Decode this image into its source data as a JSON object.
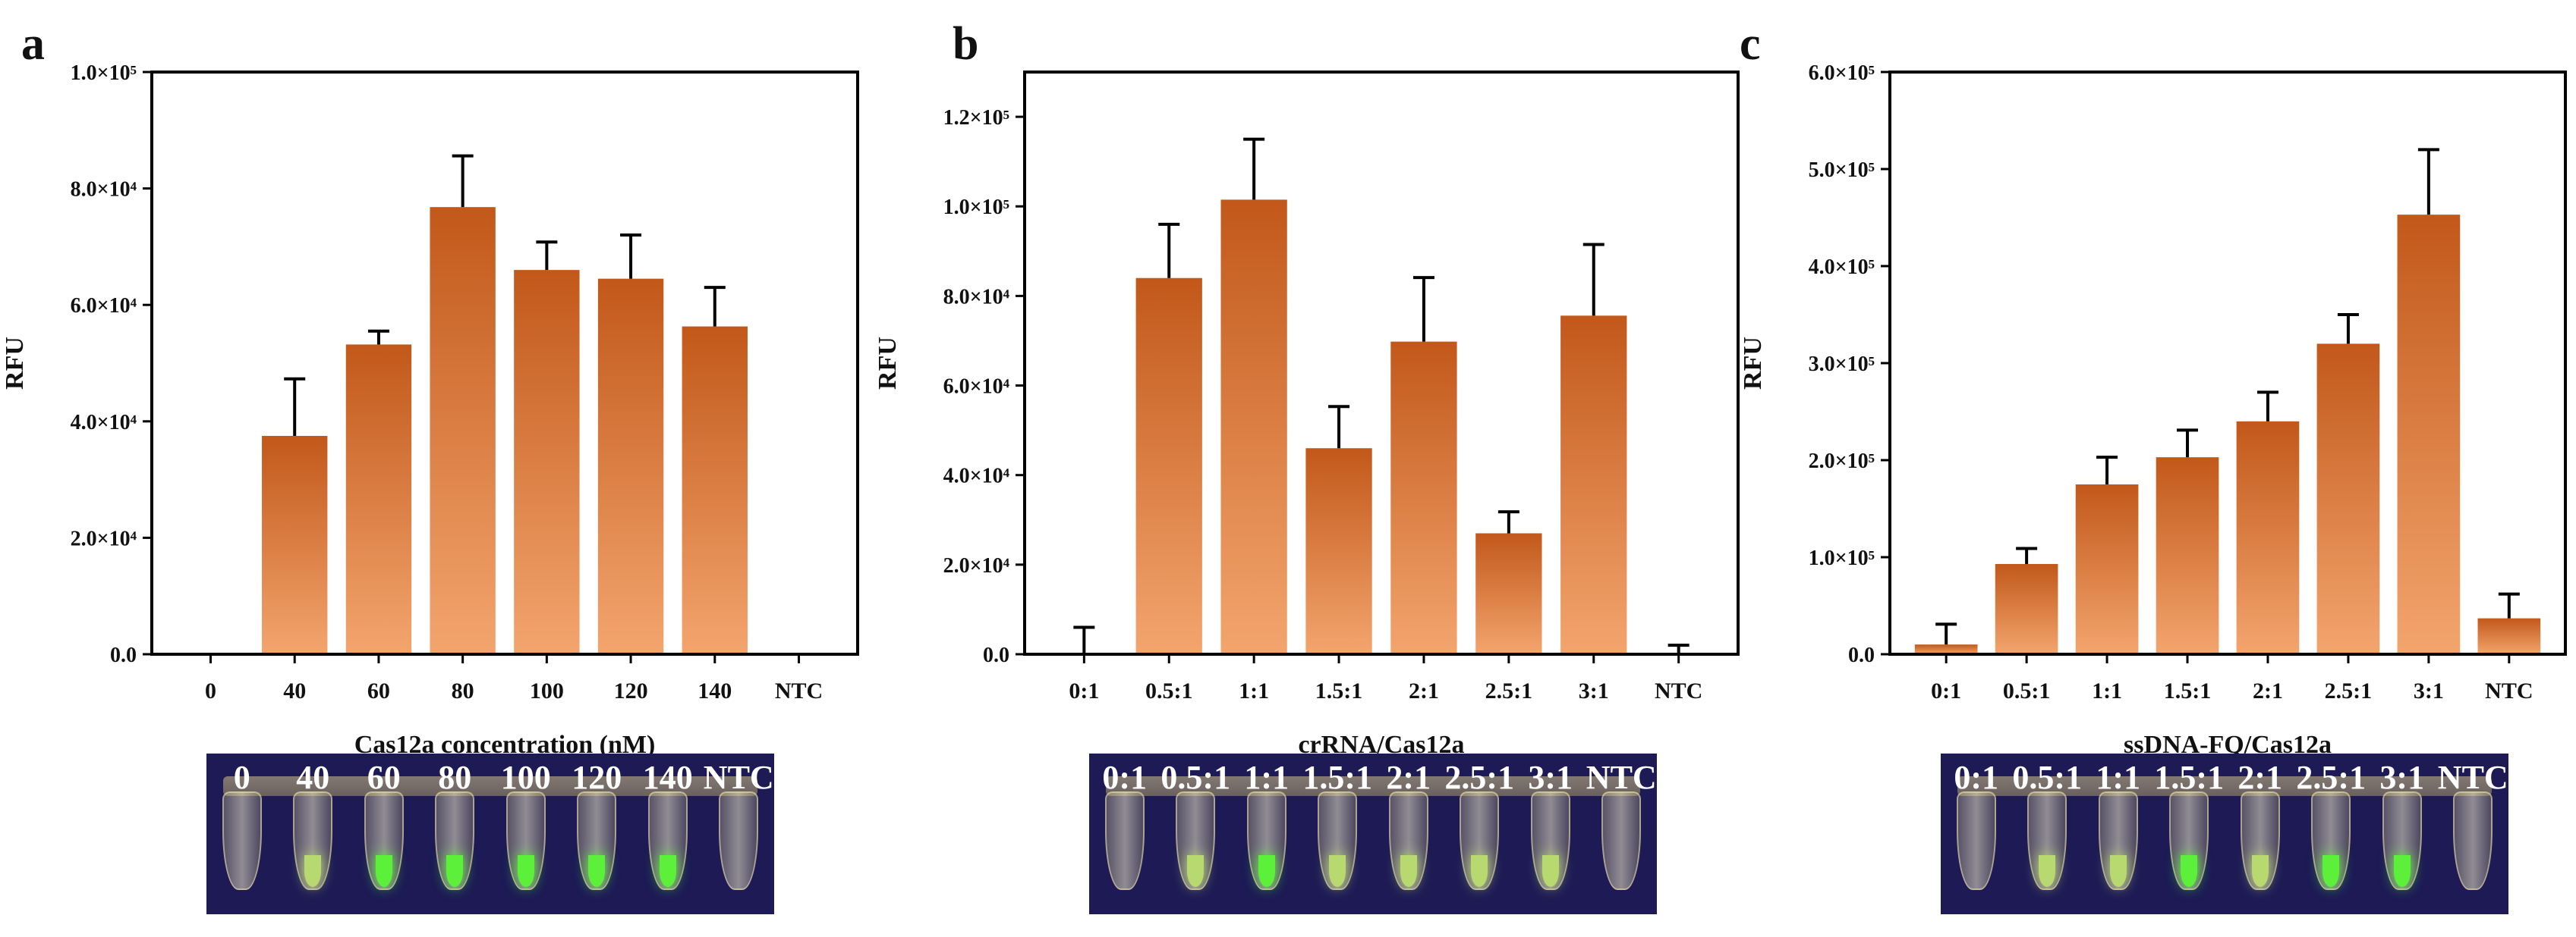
{
  "colors": {
    "bar_top": "#c2581a",
    "bar_bottom": "#f3a56e",
    "photo_bg": "#1d1a55",
    "glow_strong": "#5df03a",
    "glow_weak": "#b8d870"
  },
  "panels": [
    {
      "id": "a",
      "label": "a",
      "photo_labels": [
        "0",
        "40",
        "60",
        "80",
        "100",
        "120",
        "140",
        "NTC"
      ],
      "photo_glow": [
        "none",
        "weak",
        "strong",
        "strong",
        "strong",
        "strong",
        "strong",
        "none"
      ],
      "chart_data": {
        "type": "bar",
        "title": "",
        "xlabel": "Cas12a concentration (nM)",
        "ylabel": "RFU",
        "categories": [
          "0",
          "40",
          "60",
          "80",
          "100",
          "120",
          "140",
          "NTC"
        ],
        "values": [
          0,
          37500,
          53200,
          76800,
          66000,
          64500,
          56300,
          0
        ],
        "errors": [
          0,
          9800,
          2300,
          8800,
          4800,
          7500,
          6700,
          0
        ],
        "ylim": [
          0,
          100000
        ],
        "yticks": [
          0,
          20000,
          40000,
          60000,
          80000,
          100000
        ],
        "ytick_labels": [
          "0.0",
          "2.0×10⁴",
          "4.0×10⁴",
          "6.0×10⁴",
          "8.0×10⁴",
          "1.0×10⁵"
        ]
      }
    },
    {
      "id": "b",
      "label": "b",
      "photo_labels": [
        "0:1",
        "0.5:1",
        "1:1",
        "1.5:1",
        "2:1",
        "2.5:1",
        "3:1",
        "NTC"
      ],
      "photo_glow": [
        "none",
        "weak",
        "strong",
        "weak",
        "weak",
        "weak",
        "weak",
        "none"
      ],
      "chart_data": {
        "type": "bar",
        "title": "",
        "xlabel": "crRNA/Cas12a",
        "ylabel": "RFU",
        "categories": [
          "0:1",
          "0.5:1",
          "1:1",
          "1.5:1",
          "2:1",
          "2.5:1",
          "3:1",
          "NTC"
        ],
        "values": [
          0,
          84000,
          101500,
          46000,
          69800,
          27000,
          75600,
          0
        ],
        "errors": [
          6000,
          12000,
          13500,
          9300,
          14300,
          4800,
          15900,
          2000
        ],
        "ylim": [
          0,
          130000
        ],
        "yticks": [
          0,
          20000,
          40000,
          60000,
          80000,
          100000,
          120000
        ],
        "ytick_labels": [
          "0.0",
          "2.0×10⁴",
          "4.0×10⁴",
          "6.0×10⁴",
          "8.0×10⁴",
          "1.0×10⁵",
          "1.2×10⁵"
        ]
      }
    },
    {
      "id": "c",
      "label": "c",
      "photo_labels": [
        "0:1",
        "0.5:1",
        "1:1",
        "1.5:1",
        "2:1",
        "2.5:1",
        "3:1",
        "NTC"
      ],
      "photo_glow": [
        "none",
        "weak",
        "weak",
        "strong",
        "weak",
        "strong",
        "strong",
        "none"
      ],
      "chart_data": {
        "type": "bar",
        "title": "",
        "xlabel": "ssDNA-FQ/Cas12a",
        "ylabel": "RFU",
        "categories": [
          "0:1",
          "0.5:1",
          "1:1",
          "1.5:1",
          "2:1",
          "2.5:1",
          "3:1",
          "NTC"
        ],
        "values": [
          10000,
          93000,
          175000,
          203000,
          240000,
          320000,
          453000,
          37000
        ],
        "errors": [
          21000,
          16000,
          28000,
          28000,
          30000,
          30000,
          67000,
          25000
        ],
        "ylim": [
          0,
          600000
        ],
        "yticks": [
          0,
          100000,
          200000,
          300000,
          400000,
          500000,
          600000
        ],
        "ytick_labels": [
          "0.0",
          "1.0×10⁵",
          "2.0×10⁵",
          "3.0×10⁵",
          "4.0×10⁵",
          "5.0×10⁵",
          "6.0×10⁵"
        ]
      }
    }
  ]
}
